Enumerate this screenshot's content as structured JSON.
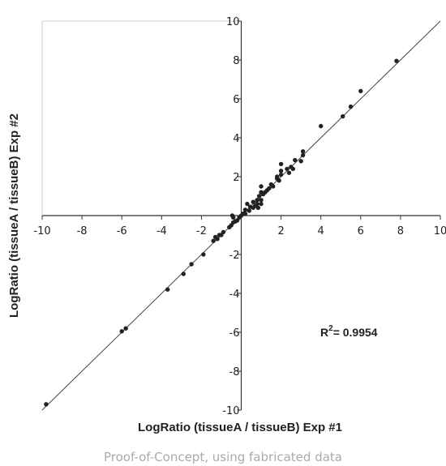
{
  "chart_data": {
    "type": "scatter",
    "title": "",
    "caption": "Proof-of-Concept, using fabricated data",
    "xlabel": "LogRatio (tissueA / tissueB) Exp #1",
    "ylabel": "LogRatio (tissueA / tissueB) Exp #2",
    "xlim": [
      -10,
      10
    ],
    "ylim": [
      -10,
      10
    ],
    "xticks": [
      "-10",
      "-8",
      "-6",
      "-4",
      "-2",
      "2",
      "4",
      "6",
      "8",
      "10"
    ],
    "yticks": [
      "10",
      "8",
      "6",
      "4",
      "2",
      "-2",
      "-4",
      "-6",
      "-8",
      "-10"
    ],
    "grid": false,
    "legend": "none",
    "annotation": {
      "prefix": "R",
      "superscript": "2",
      "suffix": "= 0.9954"
    },
    "fit_line": {
      "slope": 1,
      "intercept": 0
    },
    "colors": {
      "points": "#222222",
      "axes": "#333333",
      "fit_line": "#444444",
      "frame": "#cccccc",
      "caption": "#aaaaaa"
    },
    "points": [
      [
        -9.8,
        -9.7
      ],
      [
        -6.0,
        -5.95
      ],
      [
        -5.8,
        -5.8
      ],
      [
        -3.7,
        -3.8
      ],
      [
        -2.9,
        -3.0
      ],
      [
        -2.5,
        -2.5
      ],
      [
        -1.9,
        -2.0
      ],
      [
        -1.4,
        -1.3
      ],
      [
        -1.3,
        -1.1
      ],
      [
        -1.1,
        -1.0
      ],
      [
        -1.2,
        -1.2
      ],
      [
        -1.0,
        -1.0
      ],
      [
        -0.9,
        -0.85
      ],
      [
        -0.6,
        -0.6
      ],
      [
        -0.4,
        -0.35
      ],
      [
        -0.3,
        -0.3
      ],
      [
        -0.2,
        -0.25
      ],
      [
        -0.1,
        -0.1
      ],
      [
        -0.5,
        -0.5
      ],
      [
        -0.4,
        -0.1
      ],
      [
        -0.45,
        0.0
      ],
      [
        0.0,
        0.0
      ],
      [
        0.1,
        0.1
      ],
      [
        0.2,
        0.1
      ],
      [
        0.2,
        0.3
      ],
      [
        0.3,
        0.6
      ],
      [
        0.4,
        0.25
      ],
      [
        0.45,
        0.45
      ],
      [
        0.6,
        0.4
      ],
      [
        0.7,
        0.5
      ],
      [
        0.6,
        0.7
      ],
      [
        0.8,
        0.6
      ],
      [
        0.8,
        0.8
      ],
      [
        0.9,
        1.0
      ],
      [
        1.0,
        0.8
      ],
      [
        1.0,
        0.6
      ],
      [
        0.85,
        0.4
      ],
      [
        1.1,
        1.1
      ],
      [
        1.2,
        1.2
      ],
      [
        1.3,
        1.3
      ],
      [
        1.4,
        1.4
      ],
      [
        1.5,
        1.6
      ],
      [
        1.6,
        1.5
      ],
      [
        1.0,
        1.5
      ],
      [
        1.0,
        1.2
      ],
      [
        1.8,
        2.0
      ],
      [
        1.8,
        1.9
      ],
      [
        1.9,
        1.8
      ],
      [
        2.0,
        2.1
      ],
      [
        2.0,
        2.3
      ],
      [
        2.0,
        2.65
      ],
      [
        2.3,
        2.4
      ],
      [
        2.4,
        2.2
      ],
      [
        2.5,
        2.5
      ],
      [
        2.6,
        2.4
      ],
      [
        2.7,
        2.85
      ],
      [
        3.0,
        2.8
      ],
      [
        3.1,
        3.1
      ],
      [
        3.1,
        3.3
      ],
      [
        4.0,
        4.6
      ],
      [
        5.1,
        5.1
      ],
      [
        5.5,
        5.6
      ],
      [
        6.0,
        6.4
      ],
      [
        7.8,
        7.95
      ]
    ]
  }
}
